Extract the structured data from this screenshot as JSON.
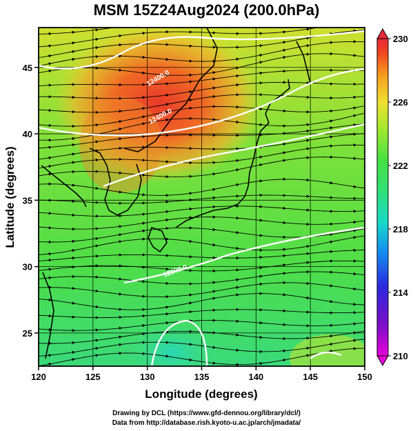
{
  "title": "MSM 15Z24Aug2024 (200.0hPa)",
  "x_axis": {
    "label": "Longitude (degrees)",
    "range": [
      120,
      150
    ],
    "ticks": [
      "120",
      "125",
      "130",
      "135",
      "140",
      "145",
      "150"
    ]
  },
  "y_axis": {
    "label": "Latitude  (degrees)",
    "range": [
      22.5,
      48
    ],
    "ticks": [
      "25",
      "30",
      "35",
      "40",
      "45"
    ]
  },
  "colorbar": {
    "range": [
      210,
      230
    ],
    "ticks": [
      "210",
      "214",
      "218",
      "222",
      "226",
      "230"
    ],
    "colors": [
      "#e600d8",
      "#7a10c8",
      "#2a2ae0",
      "#1490f0",
      "#18d8c8",
      "#30e078",
      "#48e040",
      "#a8e830",
      "#f0e030",
      "#f6a020",
      "#f04020",
      "#e8283c"
    ]
  },
  "contour_labels": [
    "12400.0",
    "12400.0",
    "12500.0"
  ],
  "credits": {
    "line1": "Drawing by DCL (https://www.gfd-dennou.org/library/dcl/)",
    "line2": "Data from http://database.rish.kyoto-u.ac.jp/arch/jmadata/"
  }
}
